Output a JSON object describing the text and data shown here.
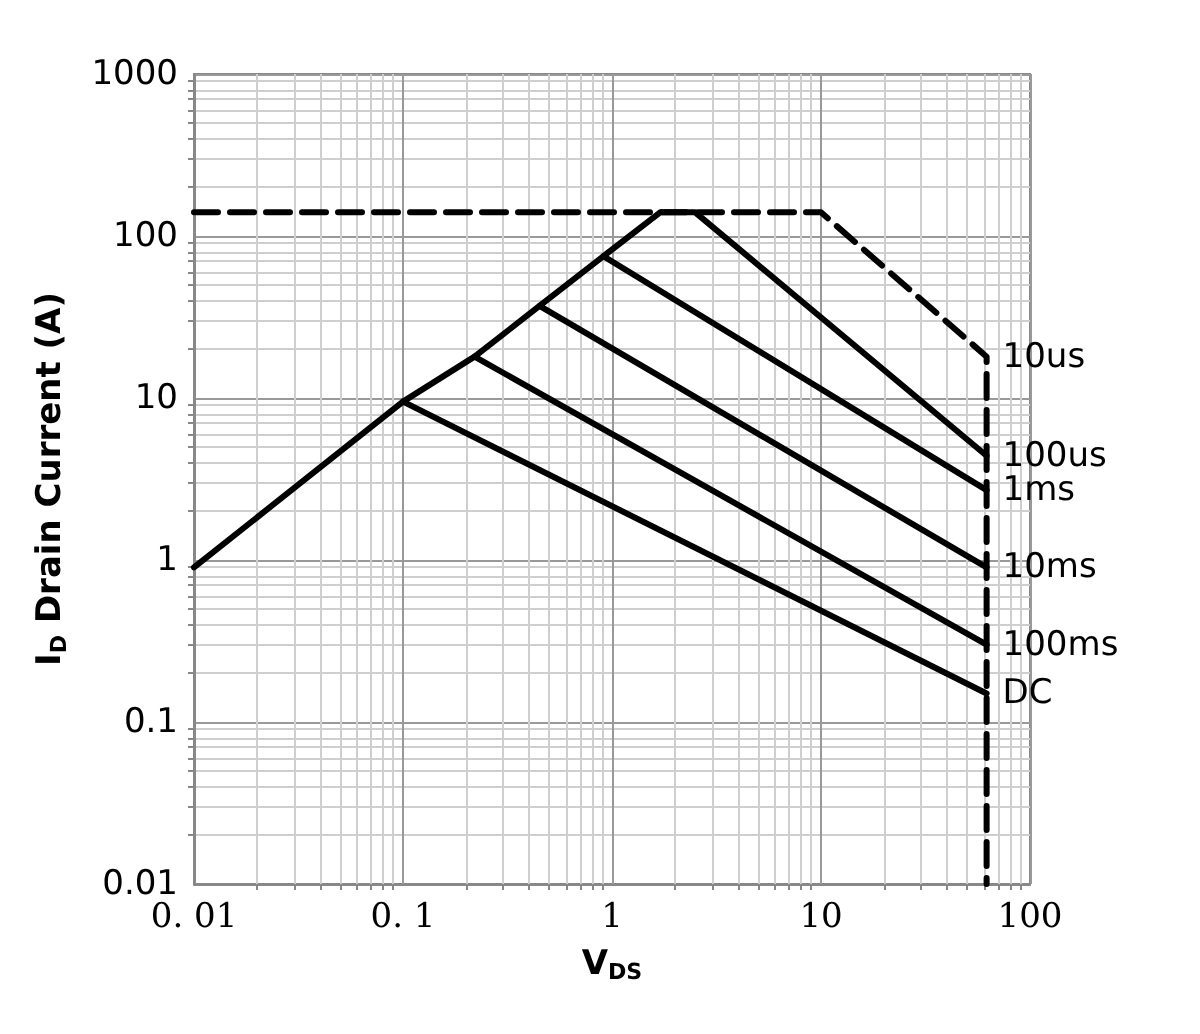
{
  "chart_data": {
    "type": "line",
    "xlabel": "V$_{DS}$",
    "ylabel": "I$_{D}$ Drain Current (A)",
    "log": "xy",
    "grid": true,
    "marker": "none",
    "xlim": [
      0.01,
      100
    ],
    "xticks": [
      {
        "value": 0.01,
        "label": "0. 01"
      },
      {
        "value": 0.1,
        "label": "0. 1"
      },
      1,
      10,
      100
    ],
    "ylim": [
      0.01,
      1000
    ],
    "yticks": [
      0.01,
      0.1,
      1,
      10,
      100,
      1000
    ],
    "series": [
      {
        "name": "10us",
        "color": "#000000",
        "line_style": "dashed",
        "x": [
          0.01,
          10,
          62,
          62
        ],
        "values": [
          140,
          140,
          18,
          0.01
        ]
      },
      {
        "name": "100us",
        "color": "#000000",
        "line_style": "solid",
        "x": [
          0.01,
          0.1,
          0.22,
          0.45,
          0.91,
          1.7,
          2.5,
          62
        ],
        "values": [
          0.9,
          9.5,
          18,
          37,
          75,
          140,
          140,
          4.4
        ]
      },
      {
        "name": "1ms",
        "color": "#000000",
        "line_style": "solid",
        "x": [
          0.91,
          62
        ],
        "values": [
          75,
          2.7
        ]
      },
      {
        "name": "10ms",
        "color": "#000000",
        "line_style": "solid",
        "x": [
          0.45,
          62
        ],
        "values": [
          37,
          0.9
        ]
      },
      {
        "name": "100ms",
        "color": "#000000",
        "line_style": "solid",
        "x": [
          0.22,
          62
        ],
        "values": [
          18,
          0.3
        ]
      },
      {
        "name": "DC",
        "color": "#000000",
        "line_style": "solid",
        "x": [
          0.1,
          62
        ],
        "values": [
          9.5,
          0.15
        ]
      }
    ]
  }
}
